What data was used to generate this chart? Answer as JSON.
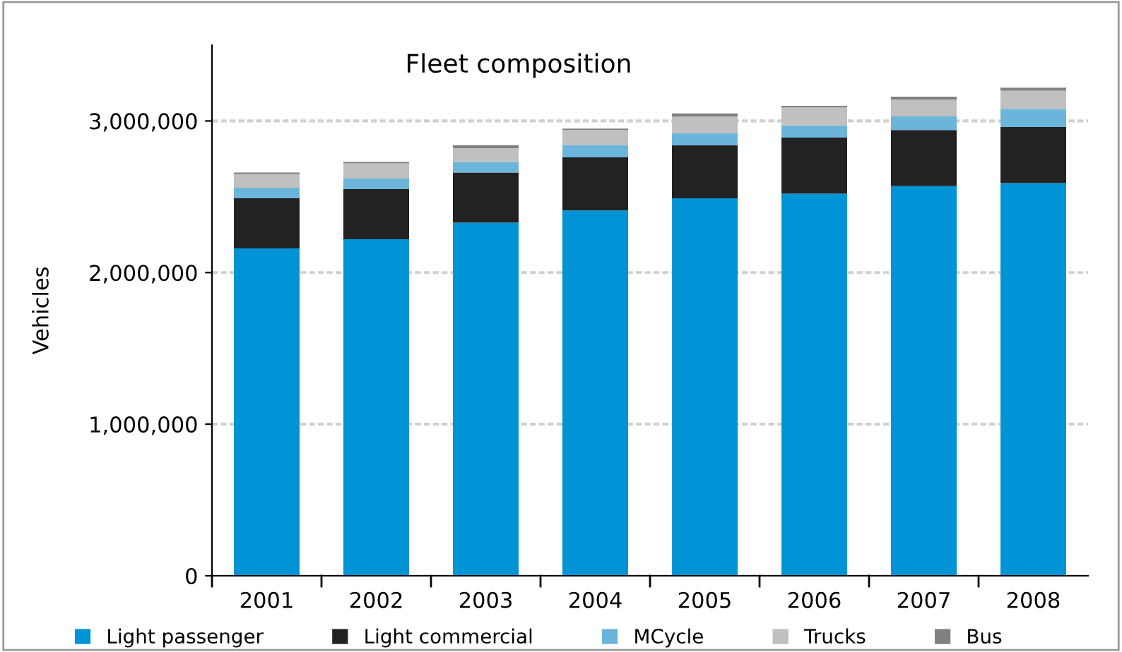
{
  "chart_data": {
    "type": "bar",
    "title": "Fleet composition",
    "ylabel": "Vehicles",
    "stacked": true,
    "categories": [
      "2001",
      "2002",
      "2003",
      "2004",
      "2005",
      "2006",
      "2007",
      "2008"
    ],
    "series": [
      {
        "name": "Light passenger",
        "color": "#0093d5",
        "values": [
          2160000,
          2220000,
          2330000,
          2410000,
          2490000,
          2520000,
          2570000,
          2590000
        ]
      },
      {
        "name": "Light commercial",
        "color": "#222222",
        "values": [
          330000,
          330000,
          330000,
          350000,
          350000,
          370000,
          370000,
          370000
        ]
      },
      {
        "name": "MCycle",
        "color": "#6bb5da",
        "values": [
          70000,
          70000,
          70000,
          80000,
          80000,
          80000,
          90000,
          120000
        ]
      },
      {
        "name": "Trucks",
        "color": "#c0c0c0",
        "values": [
          90000,
          100000,
          90000,
          100000,
          110000,
          120000,
          110000,
          120000
        ]
      },
      {
        "name": "Bus",
        "color": "#808080",
        "values": [
          10000,
          10000,
          20000,
          10000,
          20000,
          10000,
          20000,
          20000
        ]
      }
    ],
    "ylim": [
      0,
      3500000
    ],
    "yticks": [
      {
        "value": 0,
        "label": "0"
      },
      {
        "value": 1000000,
        "label": "1,000,000"
      },
      {
        "value": 2000000,
        "label": "2,000,000"
      },
      {
        "value": 3000000,
        "label": "3,000,000"
      }
    ],
    "grid": "y",
    "legend": "bottom"
  }
}
